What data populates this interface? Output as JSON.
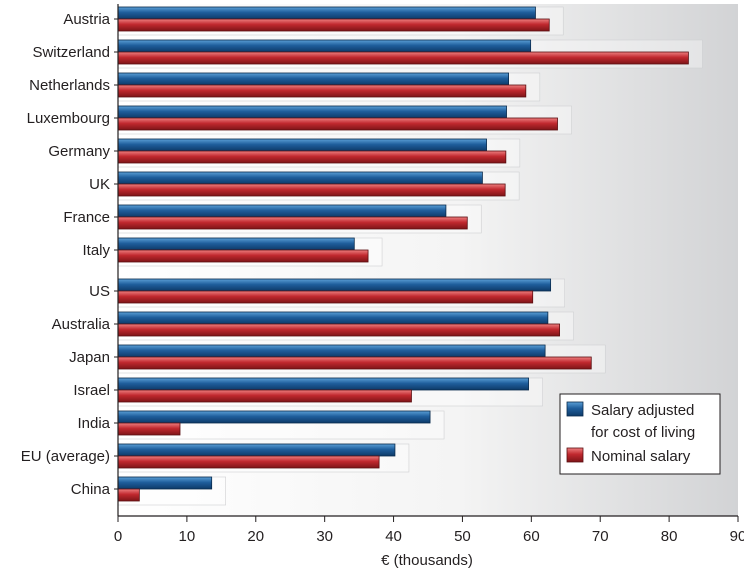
{
  "chart_data": {
    "type": "bar",
    "orientation": "horizontal",
    "categories": [
      "Austria",
      "Switzerland",
      "Netherlands",
      "Luxembourg",
      "Germany",
      "UK",
      "France",
      "Italy",
      "US",
      "Australia",
      "Japan",
      "Israel",
      "India",
      "EU (average)",
      "China"
    ],
    "groups": [
      {
        "name": "",
        "categories": [
          "Austria",
          "Switzerland",
          "Netherlands",
          "Luxembourg",
          "Germany",
          "UK",
          "France",
          "Italy"
        ]
      },
      {
        "name": "",
        "categories": [
          "US",
          "Australia",
          "Japan",
          "Israel",
          "India",
          "EU (average)",
          "China"
        ]
      }
    ],
    "series": [
      {
        "name": "Salary adjusted for cost of living",
        "color": "#1f5e9c",
        "values": [
          60.6,
          59.9,
          56.7,
          56.4,
          53.5,
          52.9,
          47.6,
          34.3,
          62.8,
          62.4,
          62.0,
          59.6,
          45.3,
          40.2,
          13.6
        ]
      },
      {
        "name": "Nominal salary",
        "color": "#c0282e",
        "values": [
          62.6,
          82.8,
          59.2,
          63.8,
          56.3,
          56.2,
          50.7,
          36.3,
          60.2,
          64.1,
          68.7,
          42.6,
          9.0,
          37.9,
          3.1
        ]
      }
    ],
    "xlabel": "€ (thousands)",
    "ylabel": "",
    "xlim": [
      0,
      90
    ],
    "xticks": [
      0,
      10,
      20,
      30,
      40,
      50,
      60,
      70,
      80,
      90
    ],
    "grid": false,
    "legend": {
      "position": "right-lower",
      "entries": [
        {
          "line1": "Salary adjusted",
          "line2": "for cost of living",
          "color": "#1f5e9c"
        },
        {
          "line1": "Nominal salary",
          "line2": "",
          "color": "#c0282e"
        }
      ]
    }
  }
}
